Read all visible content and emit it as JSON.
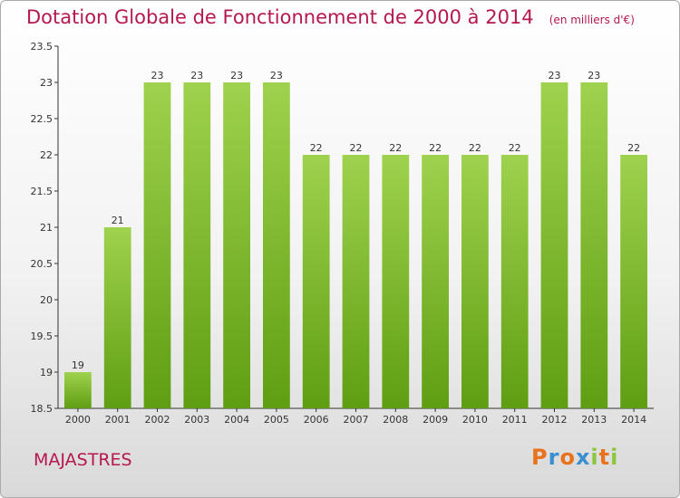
{
  "chart_data": {
    "type": "bar",
    "title": "Dotation Globale de Fonctionnement de 2000 à 2014",
    "subtitle": "(en milliers d'€)",
    "categories": [
      "2000",
      "2001",
      "2002",
      "2003",
      "2004",
      "2005",
      "2006",
      "2007",
      "2008",
      "2009",
      "2010",
      "2011",
      "2012",
      "2013",
      "2014"
    ],
    "values": [
      19,
      21,
      23,
      23,
      23,
      23,
      22,
      22,
      22,
      22,
      22,
      22,
      23,
      23,
      22
    ],
    "data_labels": [
      "19",
      "21",
      "23",
      "23",
      "23",
      "23",
      "22",
      "22",
      "22",
      "22",
      "22",
      "22",
      "23",
      "23",
      "22"
    ],
    "xlabel": "",
    "ylabel": "",
    "ylim": [
      18.5,
      23.5
    ],
    "yticks": [
      "18.5",
      "19",
      "19.5",
      "20",
      "20.5",
      "21",
      "21.5",
      "22",
      "22.5",
      "23",
      "23.5"
    ],
    "grid": false,
    "bar_color": "#8cc63f"
  },
  "commune": "MAJASTRES",
  "logo": {
    "letters": [
      "P",
      "r",
      "o",
      "x",
      "i",
      "t",
      "i"
    ],
    "colors": [
      "#e8731c",
      "#3a8fd0",
      "#e8731c",
      "#3a8fd0",
      "#8cc63f",
      "#e8731c",
      "#8cc63f"
    ]
  },
  "colors": {
    "accent": "#b5174f",
    "axis": "#333333"
  }
}
